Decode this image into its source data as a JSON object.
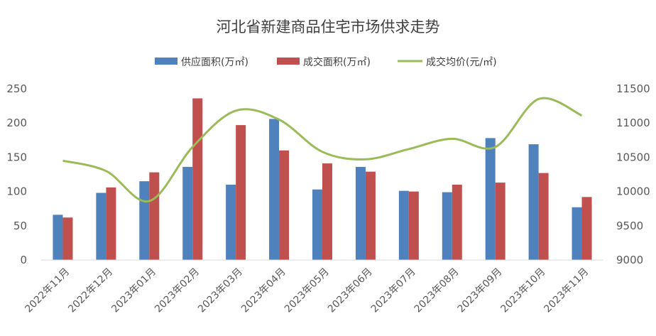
{
  "chart_data": {
    "type": "bar",
    "title": "河北省新建商品住宅市场供求走势",
    "categories": [
      "2022年11月",
      "2022年12月",
      "2023年01月",
      "2023年02月",
      "2023年03月",
      "2023年04月",
      "2023年05月",
      "2023年06月",
      "2023年07月",
      "2023年08月",
      "2023年09月",
      "2023年10月",
      "2023年11月"
    ],
    "series": [
      {
        "name": "供应面积(万㎡)",
        "type": "bar",
        "axis": "left",
        "color": "#4f81bd",
        "values": [
          66,
          98,
          115,
          136,
          110,
          206,
          103,
          136,
          101,
          99,
          178,
          169,
          77
        ]
      },
      {
        "name": "成交面积(万㎡)",
        "type": "bar",
        "axis": "left",
        "color": "#c0504d",
        "values": [
          62,
          106,
          128,
          236,
          197,
          160,
          141,
          129,
          100,
          110,
          113,
          127,
          92
        ]
      },
      {
        "name": "成交均价(元/㎡)",
        "type": "line",
        "axis": "right",
        "color": "#9bbb59",
        "values": [
          10450,
          10300,
          9860,
          10650,
          11180,
          11050,
          10580,
          10470,
          10620,
          10770,
          10650,
          11350,
          11110
        ]
      }
    ],
    "y_left": {
      "min": 0,
      "max": 250,
      "ticks": [
        "0",
        "50",
        "100",
        "150",
        "200",
        "250"
      ]
    },
    "y_right": {
      "min": 9000,
      "max": 11500,
      "ticks": [
        "9000",
        "9500",
        "10000",
        "10500",
        "11000",
        "11500"
      ]
    },
    "grid": false,
    "legend": "top-center"
  }
}
